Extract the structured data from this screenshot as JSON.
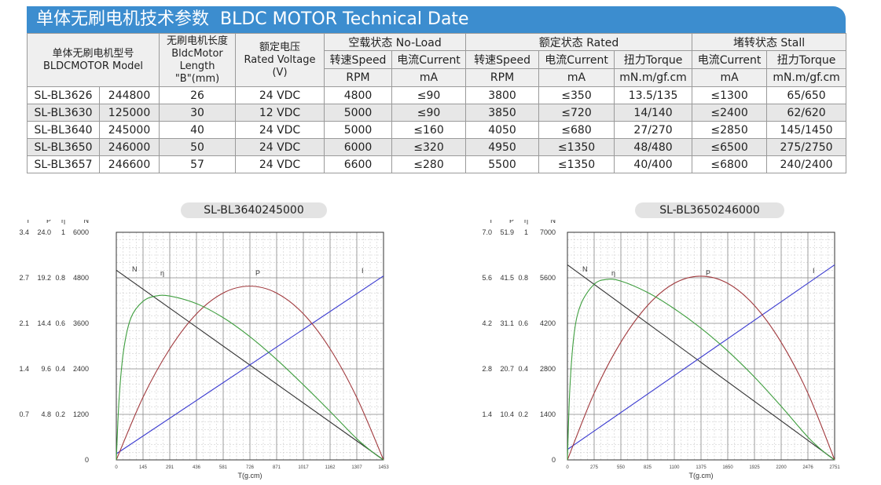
{
  "header": {
    "title_cn": "单体无刷电机技术参数",
    "title_en": "BLDC MOTOR Technical Date"
  },
  "table": {
    "model_header": [
      "单体无刷电机型号",
      "BLDCMOTOR Model"
    ],
    "length_header": [
      "无刷电机长度",
      "BldcMotor",
      "Length",
      "\"B\"(mm)"
    ],
    "voltage_header": [
      "额定电压",
      "Rated Voltage",
      "(V)"
    ],
    "group_noload": "空载状态 No-Load",
    "group_rated": "额定状态 Rated",
    "group_stall": "堵转状态 Stall",
    "sub_headers": [
      "转速Speed",
      "电流Current",
      "转速Speed",
      "电流Current",
      "扭力Torque",
      "电流Current",
      "扭力Torque"
    ],
    "units": [
      "RPM",
      "mA",
      "RPM",
      "mA",
      "mN.m/gf.cm",
      "mA",
      "mN.m/gf.cm"
    ],
    "rows": [
      [
        "SL-BL3626",
        "244800",
        "26",
        "24 VDC",
        "4800",
        "≤90",
        "3800",
        "≤350",
        "13.5/135",
        "≤1300",
        "65/650"
      ],
      [
        "SL-BL3630",
        "125000",
        "30",
        "12 VDC",
        "5000",
        "≤90",
        "3850",
        "≤720",
        "14/140",
        "≤2400",
        "62/620"
      ],
      [
        "SL-BL3640",
        "245000",
        "40",
        "24 VDC",
        "5000",
        "≤160",
        "4050",
        "≤680",
        "27/270",
        "≤2850",
        "145/1450"
      ],
      [
        "SL-BL3650",
        "246000",
        "50",
        "24 VDC",
        "6000",
        "≤320",
        "4950",
        "≤1350",
        "48/480",
        "≤6500",
        "275/2750"
      ],
      [
        "SL-BL3657",
        "246600",
        "57",
        "24 VDC",
        "6600",
        "≤280",
        "5500",
        "≤1350",
        "40/400",
        "≤6800",
        "240/2400"
      ]
    ]
  },
  "chart_data": [
    {
      "type": "line",
      "title": "SL-BL3640245000",
      "xlabel": "T(g.cm)",
      "xlim": [
        0,
        1453
      ],
      "x_ticks": [
        "0",
        "145",
        "291",
        "436",
        "581",
        "726",
        "871",
        "1017",
        "1162",
        "1307",
        "1453"
      ],
      "axis_headers": [
        "I",
        "P",
        "η",
        "N"
      ],
      "y_axes": {
        "I": [
          "0.7",
          "1.4",
          "2.1",
          "2.7",
          "3.4"
        ],
        "P": [
          "4.8",
          "9.6",
          "14.4",
          "19.2",
          "24.0"
        ],
        "eta": [
          "0.2",
          "0.4",
          "0.6",
          "0.8",
          "1"
        ],
        "N": [
          "0",
          "1200",
          "2400",
          "3600",
          "4800",
          "6000"
        ]
      },
      "ylim_N": [
        0,
        6000
      ],
      "grid": true,
      "series": [
        {
          "name": "N",
          "color": "#333333",
          "x": [
            0,
            1453
          ],
          "y": [
            5000,
            0
          ]
        },
        {
          "name": "I",
          "color": "#3a3ad0",
          "x": [
            0,
            1453
          ],
          "y": [
            160,
            4850
          ]
        },
        {
          "name": "P",
          "color": "#a0383c",
          "x": [
            0,
            145,
            291,
            436,
            581,
            726,
            871,
            1017,
            1162,
            1307,
            1453
          ],
          "y": [
            0,
            1650,
            2930,
            3850,
            4400,
            4580,
            4400,
            3850,
            2930,
            1650,
            0
          ]
        },
        {
          "name": "η",
          "color": "#3f9e3f",
          "x": [
            0,
            15,
            40,
            80,
            145,
            215,
            291,
            436,
            581,
            726,
            871,
            1017,
            1162,
            1307,
            1400,
            1453
          ],
          "y": [
            0,
            1600,
            2900,
            3750,
            4180,
            4320,
            4320,
            4120,
            3750,
            3250,
            2650,
            1980,
            1280,
            560,
            180,
            0
          ]
        }
      ]
    },
    {
      "type": "line",
      "title": "SL-BL3650246000",
      "xlabel": "T(g.cm)",
      "xlim": [
        0,
        2751
      ],
      "x_ticks": [
        "0",
        "275",
        "550",
        "825",
        "1100",
        "1375",
        "1650",
        "1925",
        "2200",
        "2476",
        "2751"
      ],
      "axis_headers": [
        "I",
        "P",
        "η",
        "N"
      ],
      "y_axes": {
        "I": [
          "1.4",
          "2.8",
          "4.2",
          "5.6",
          "7.0"
        ],
        "P": [
          "10.4",
          "20.7",
          "31.1",
          "41.5",
          "51.9"
        ],
        "eta": [
          "0.2",
          "0.4",
          "0.6",
          "0.8",
          "1"
        ],
        "N": [
          "0",
          "1400",
          "2800",
          "4200",
          "5600",
          "7000"
        ]
      },
      "ylim_N": [
        0,
        7000
      ],
      "grid": true,
      "series": [
        {
          "name": "N",
          "color": "#333333",
          "x": [
            0,
            2751
          ],
          "y": [
            6000,
            0
          ]
        },
        {
          "name": "I",
          "color": "#3a3ad0",
          "x": [
            0,
            2751
          ],
          "y": [
            320,
            6000
          ]
        },
        {
          "name": "P",
          "color": "#a0383c",
          "x": [
            0,
            275,
            550,
            825,
            1100,
            1375,
            1650,
            1925,
            2200,
            2476,
            2751
          ],
          "y": [
            0,
            2050,
            3620,
            4750,
            5430,
            5650,
            5430,
            4750,
            3620,
            2050,
            0
          ]
        },
        {
          "name": "η",
          "color": "#3f9e3f",
          "x": [
            0,
            25,
            70,
            140,
            275,
            400,
            550,
            825,
            1100,
            1375,
            1650,
            1925,
            2200,
            2476,
            2650,
            2751
          ],
          "y": [
            0,
            2200,
            3900,
            4800,
            5400,
            5550,
            5500,
            5150,
            4650,
            4050,
            3350,
            2550,
            1650,
            700,
            220,
            0
          ]
        }
      ]
    }
  ]
}
